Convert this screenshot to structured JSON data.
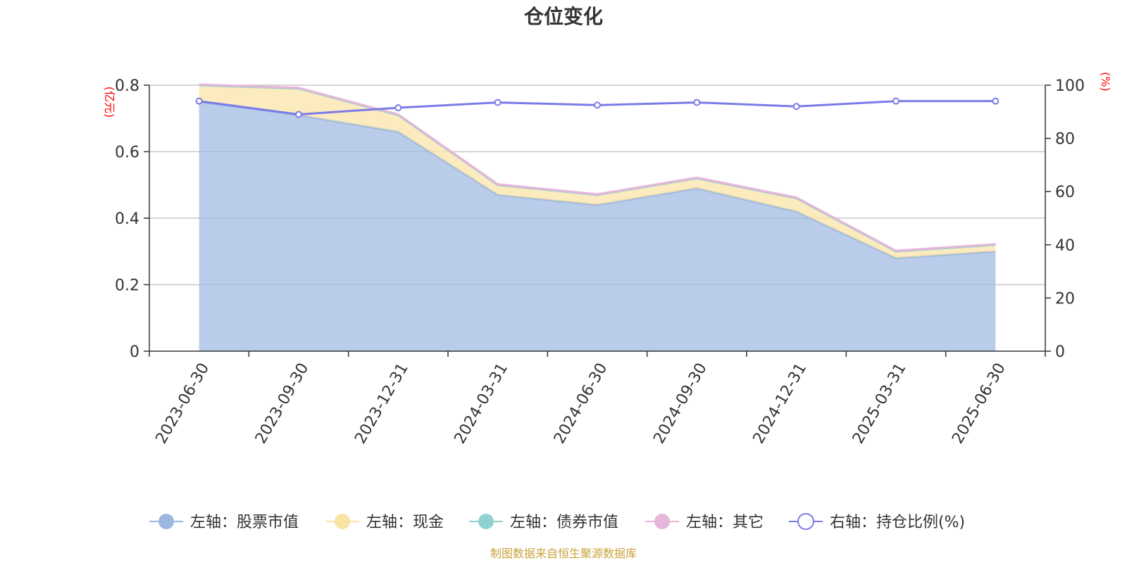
{
  "chart_data": {
    "type": "area",
    "title": "仓位变化",
    "categories": [
      "2023-06-30",
      "2023-09-30",
      "2023-12-31",
      "2024-03-31",
      "2024-06-30",
      "2024-09-30",
      "2024-12-31",
      "2025-03-31",
      "2025-06-30"
    ],
    "left_axis": {
      "unit": "(亿元)",
      "ylim": [
        0,
        0.8
      ],
      "ticks": [
        "0",
        "0.2",
        "0.4",
        "0.6",
        "0.8"
      ],
      "grid": true
    },
    "right_axis": {
      "unit": "(%)",
      "ylim": [
        0,
        100
      ],
      "ticks": [
        "0",
        "20",
        "40",
        "60",
        "80",
        "100"
      ]
    },
    "series": [
      {
        "name": "左轴：股票市值",
        "axis": "left",
        "type": "area",
        "color": "#9bb7e0",
        "values": [
          0.75,
          0.71,
          0.66,
          0.47,
          0.44,
          0.49,
          0.42,
          0.28,
          0.3
        ]
      },
      {
        "name": "左轴：现金",
        "axis": "left",
        "type": "area",
        "color": "#f9e3a3",
        "values": [
          0.05,
          0.08,
          0.05,
          0.03,
          0.03,
          0.03,
          0.04,
          0.02,
          0.02
        ]
      },
      {
        "name": "左轴：债券市值",
        "axis": "left",
        "type": "area",
        "color": "#8fd1d1",
        "values": [
          0,
          0,
          0,
          0,
          0,
          0,
          0,
          0,
          0
        ]
      },
      {
        "name": "左轴：其它",
        "axis": "left",
        "type": "area",
        "color": "#e8b6da",
        "values": [
          0.002,
          0.002,
          0.002,
          0.002,
          0.002,
          0.002,
          0.002,
          0.002,
          0.002
        ]
      },
      {
        "name": "右轴：持仓比例(%)",
        "axis": "right",
        "type": "line",
        "color": "#7b7be8",
        "values": [
          94,
          89,
          91.5,
          93.5,
          92.5,
          93.5,
          92,
          94,
          94
        ]
      }
    ],
    "legend_position": "bottom"
  },
  "footer": "制图数据来自恒生聚源数据库"
}
